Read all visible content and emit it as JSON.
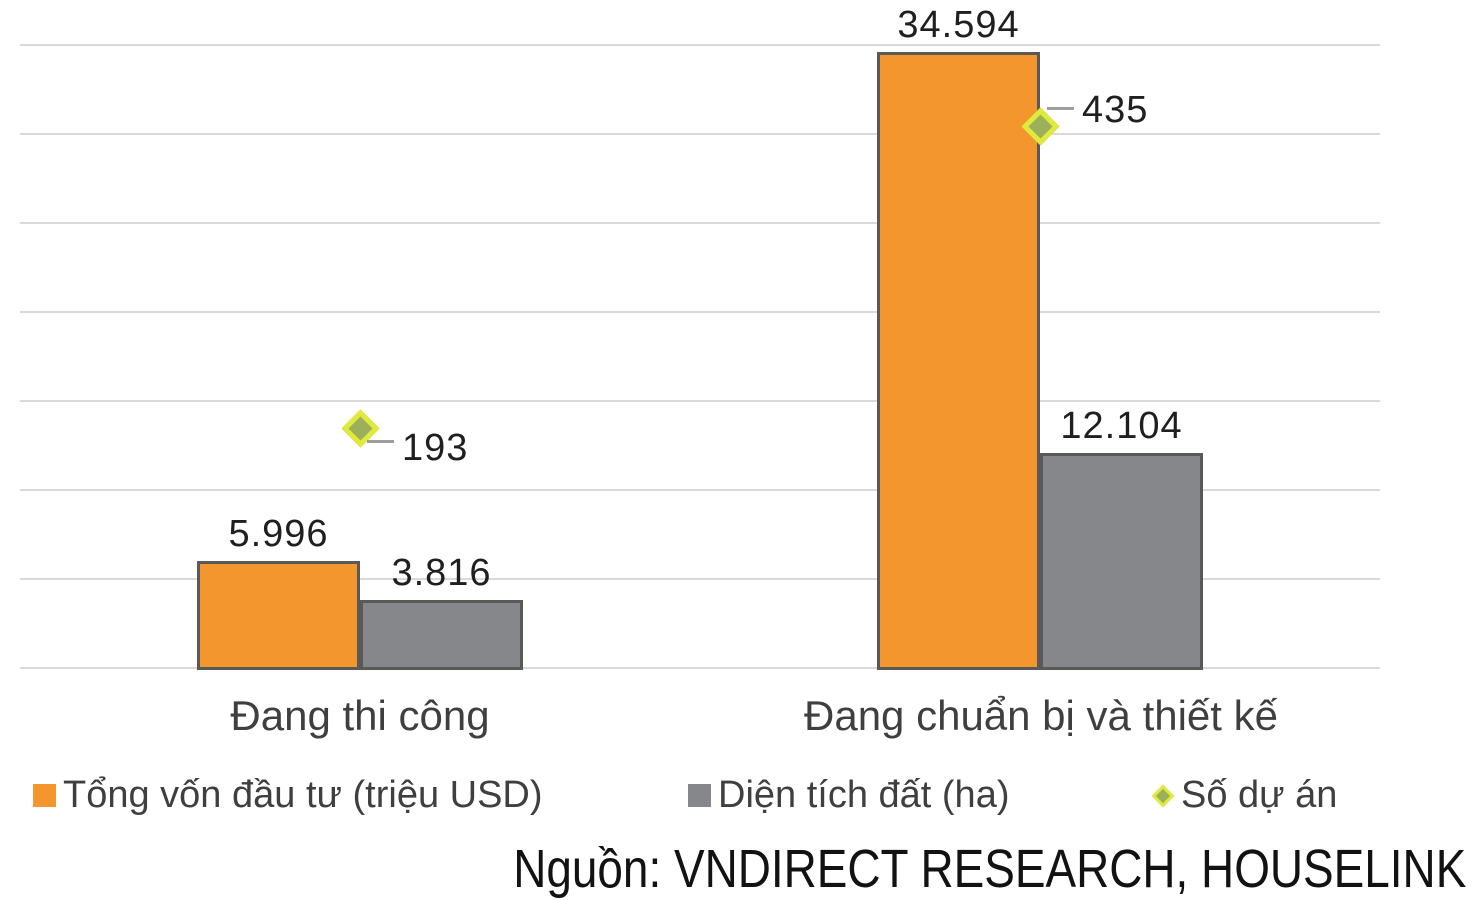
{
  "chart_data": {
    "type": "bar",
    "categories": [
      "Đang thi công",
      "Đang chuẩn bị và thiết kế"
    ],
    "series": [
      {
        "name": "Tổng vốn đầu tư (triệu USD)",
        "kind": "bar",
        "axis": "primary",
        "color": "#F2962D",
        "border_color": "#595959",
        "values": [
          5996,
          34594
        ],
        "labels": [
          "5.996",
          "34.594"
        ]
      },
      {
        "name": "Diện tích đất (ha)",
        "kind": "bar",
        "axis": "primary",
        "color": "#85878A",
        "border_color": "#595959",
        "values": [
          3816,
          12104
        ],
        "labels": [
          "3.816",
          "12.104"
        ]
      },
      {
        "name": "Số dự án",
        "kind": "marker",
        "axis": "secondary",
        "color": "#9CAF5B",
        "border_color": "#E0EA3C",
        "values": [
          193,
          435
        ],
        "labels": [
          "193",
          "435"
        ]
      }
    ],
    "title": "",
    "xlabel": "",
    "ylabel": "",
    "primary_axis": {
      "min": 0,
      "max": 35000,
      "gridline_step": 5000,
      "tick_labels_visible": false
    },
    "secondary_axis": {
      "min": 0,
      "max": 500,
      "tick_labels_visible": false
    },
    "grid": true,
    "gridline_color": "#D9D9D9",
    "legend_position": "bottom",
    "source": "Nguồn: VNDIRECT RESEARCH, HOUSELINK"
  }
}
